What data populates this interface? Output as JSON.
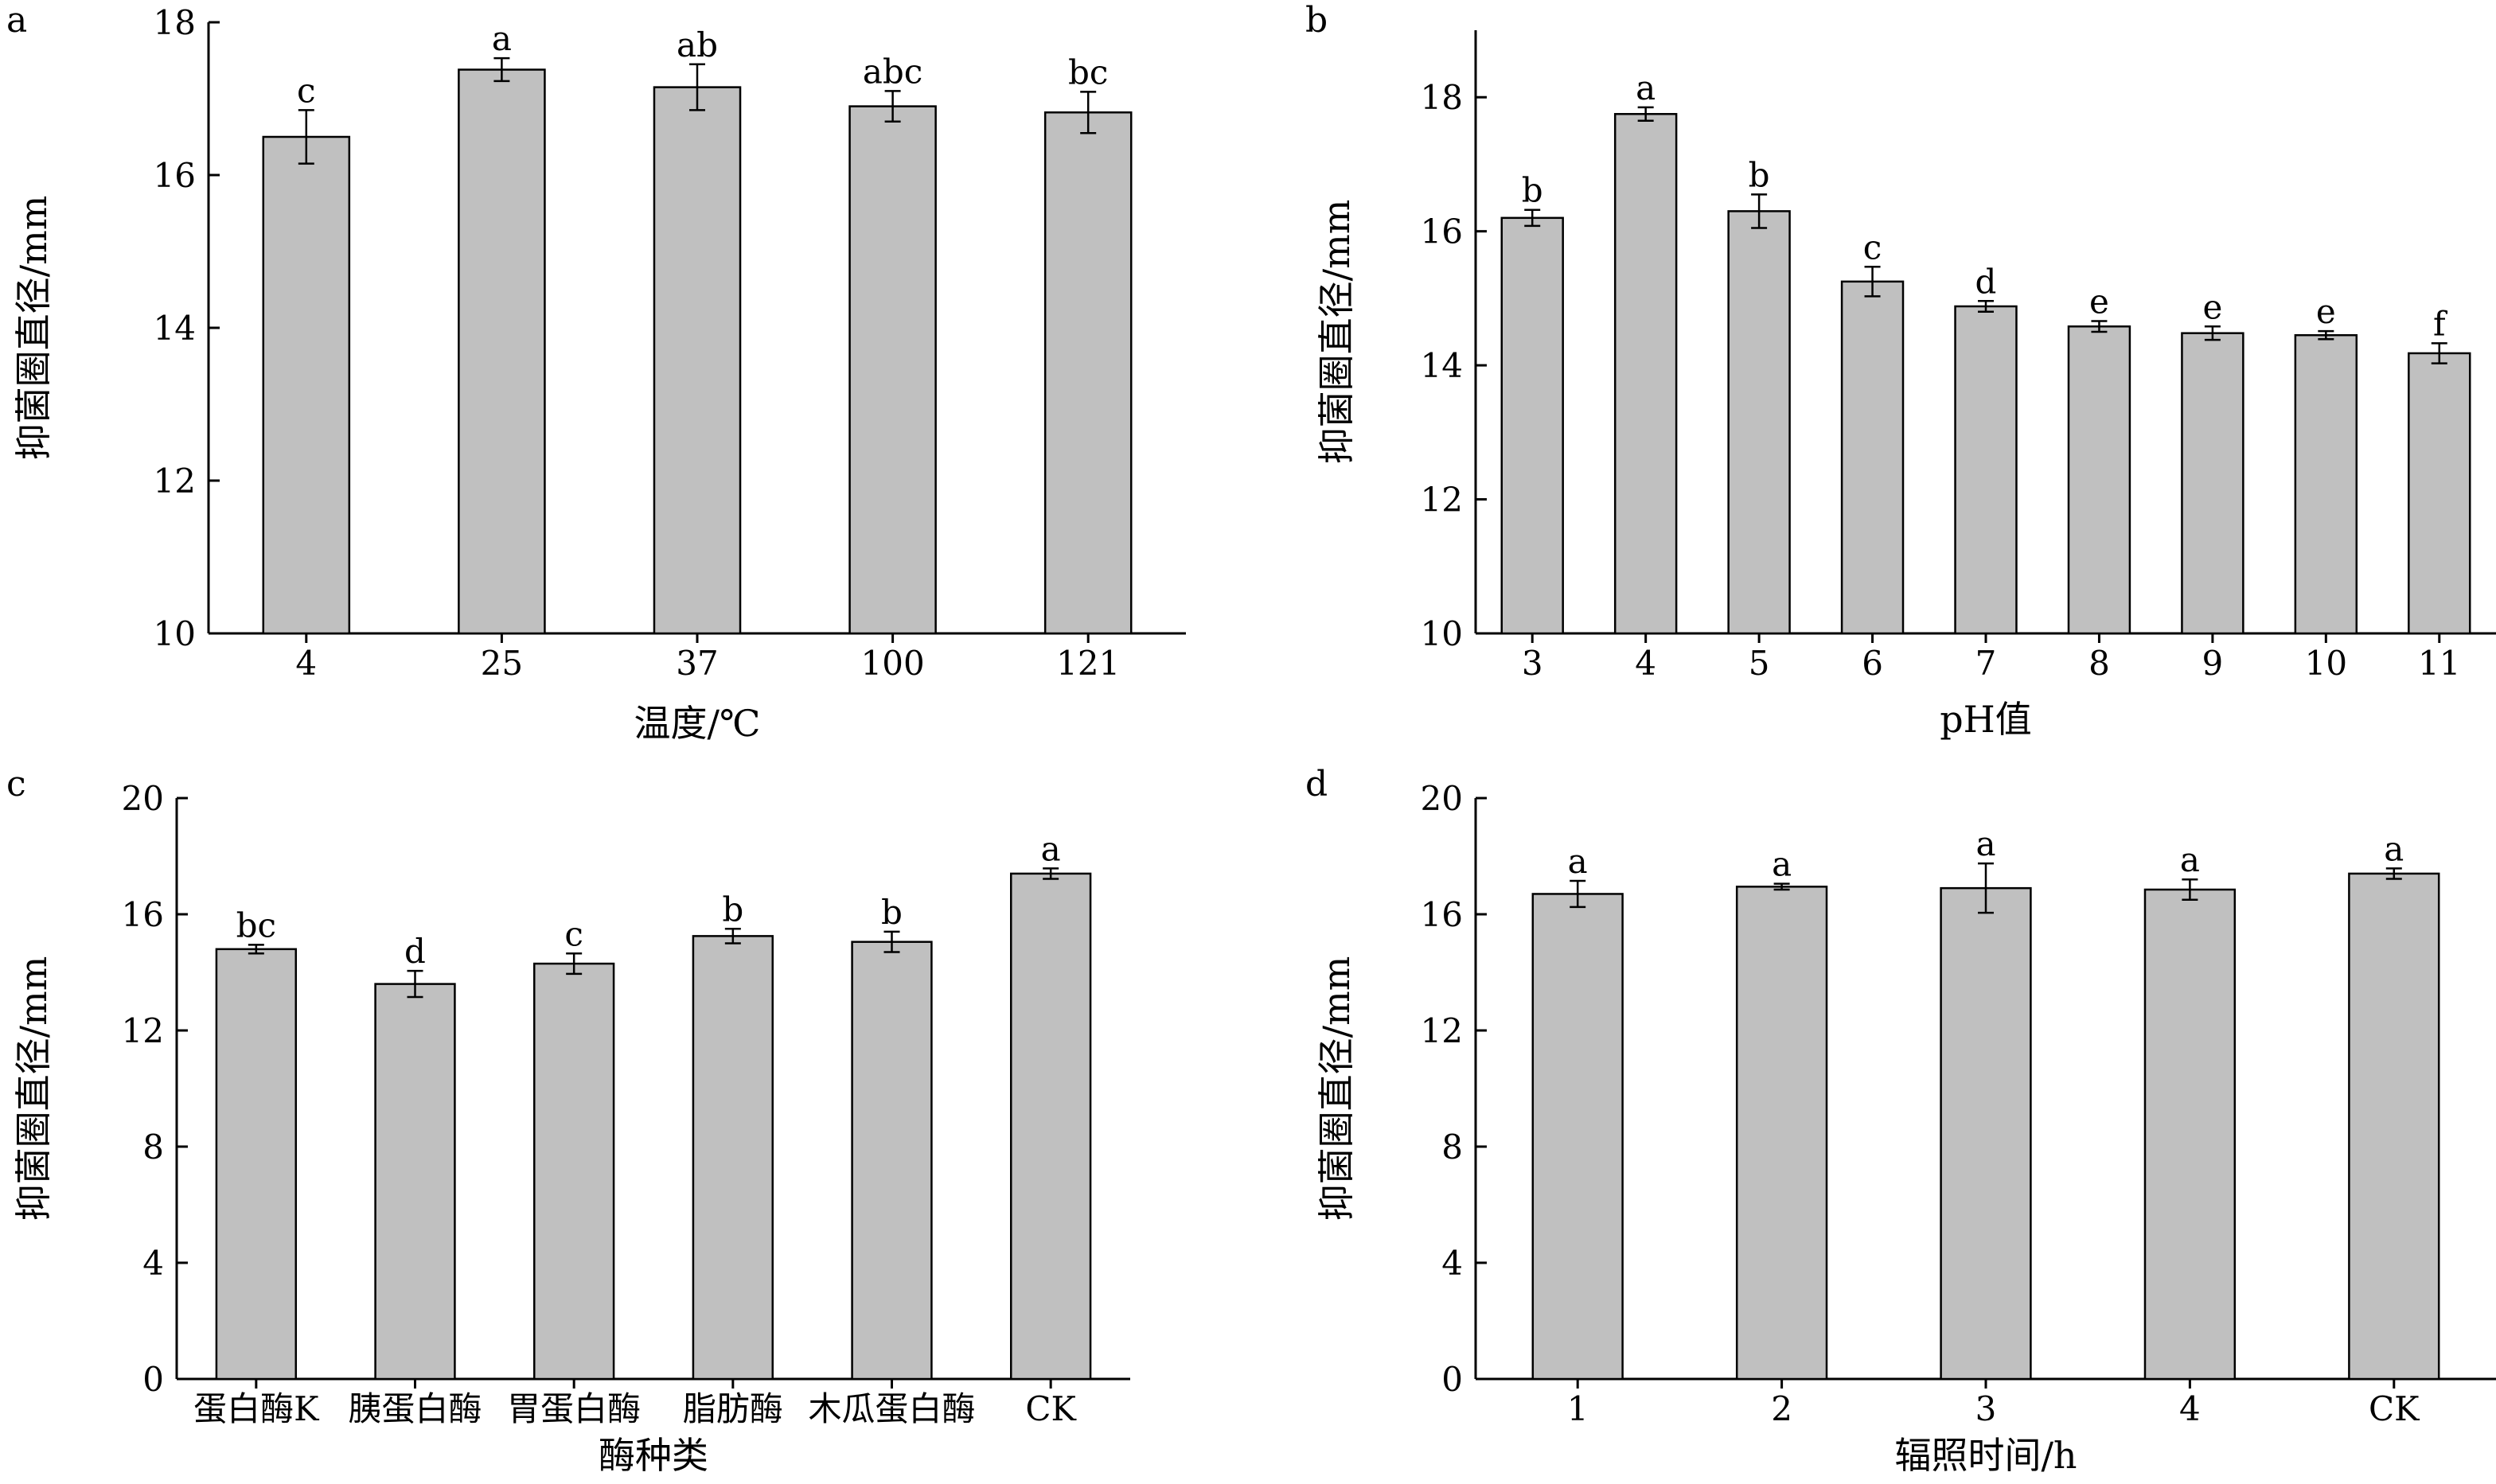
{
  "chart_data": [
    {
      "type": "bar",
      "panel_label": "a",
      "xlabel": "温度/℃",
      "ylabel": "抑菌圈直径/mm",
      "ylim": [
        10,
        18
      ],
      "yticks": [
        10,
        12,
        14,
        16,
        18
      ],
      "categories": [
        "4",
        "25",
        "37",
        "100",
        "121"
      ],
      "values": [
        16.5,
        17.38,
        17.15,
        16.9,
        16.82
      ],
      "errors": [
        0.35,
        0.15,
        0.3,
        0.2,
        0.27
      ],
      "sig_letters": [
        "c",
        "a",
        "ab",
        "abc",
        "bc"
      ],
      "grid": false
    },
    {
      "type": "bar",
      "panel_label": "b",
      "xlabel": "pH值",
      "ylabel": "抑菌圈直径/mm",
      "ylim": [
        10,
        19
      ],
      "yticks": [
        10,
        12,
        14,
        16,
        18
      ],
      "categories": [
        "3",
        "4",
        "5",
        "6",
        "7",
        "8",
        "9",
        "10",
        "11"
      ],
      "values": [
        16.2,
        17.75,
        16.3,
        15.25,
        14.88,
        14.58,
        14.48,
        14.45,
        14.18
      ],
      "errors": [
        0.12,
        0.1,
        0.25,
        0.22,
        0.08,
        0.08,
        0.1,
        0.06,
        0.15
      ],
      "sig_letters": [
        "b",
        "a",
        "b",
        "c",
        "d",
        "e",
        "e",
        "e",
        "f"
      ],
      "grid": false
    },
    {
      "type": "bar",
      "panel_label": "c",
      "xlabel": "酶种类",
      "ylabel": "抑菌圈直径/mm",
      "ylim": [
        0,
        20
      ],
      "yticks": [
        0,
        4,
        8,
        12,
        16,
        20
      ],
      "categories": [
        "蛋白酶K",
        "胰蛋白酶",
        "胃蛋白酶",
        "脂肪酶",
        "木瓜蛋白酶",
        "CK"
      ],
      "values": [
        14.8,
        13.6,
        14.3,
        15.25,
        15.05,
        17.4
      ],
      "errors": [
        0.15,
        0.45,
        0.35,
        0.25,
        0.35,
        0.18
      ],
      "sig_letters": [
        "bc",
        "d",
        "c",
        "b",
        "b",
        "a"
      ],
      "grid": false
    },
    {
      "type": "bar",
      "panel_label": "d",
      "xlabel": "辐照时间/h",
      "ylabel": "抑菌圈直径/mm",
      "ylim": [
        0,
        20
      ],
      "yticks": [
        0,
        4,
        8,
        12,
        16,
        20
      ],
      "categories": [
        "1",
        "2",
        "3",
        "4",
        "CK"
      ],
      "values": [
        16.7,
        16.95,
        16.9,
        16.85,
        17.4
      ],
      "errors": [
        0.45,
        0.1,
        0.85,
        0.35,
        0.18
      ],
      "sig_letters": [
        "a",
        "a",
        "a",
        "a",
        "a"
      ],
      "grid": false
    }
  ]
}
